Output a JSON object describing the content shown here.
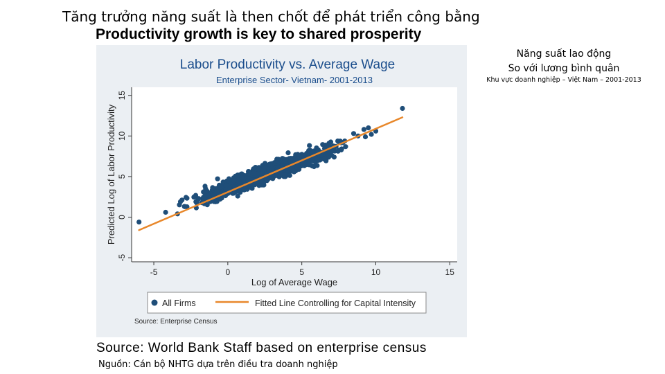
{
  "slide": {
    "title_vi": "Tăng trưởng năng suất là then chốt để phát triển công bằng",
    "title_en": "Productivity growth is key to shared prosperity",
    "side_title_line1": "Năng suất lao động",
    "side_title_line2": "So với lương bình quân",
    "side_subtitle": "Khu vực doanh nghiệp – Việt Nam – 2001-2013",
    "source_en": "Source: World Bank Staff based on enterprise census",
    "source_vi": "Nguồn: Cán bộ NHTG dựa trên điều tra doanh nghiệp"
  },
  "colors": {
    "points": "#1f4e79",
    "fit_line": "#e8872a",
    "panel_bg": "#ebeff3",
    "plot_bg": "#ffffff",
    "title": "#1a4d8c"
  },
  "chart_data": {
    "type": "scatter",
    "title": "Labor Productivity vs. Average Wage",
    "subtitle": "Enterprise Sector- Vietnam- 2001-2013",
    "xlabel": "Log of Average Wage",
    "ylabel": "Predicted Log of Labor Productivity",
    "xlim": [
      -6.5,
      15.5
    ],
    "ylim": [
      -5.5,
      16
    ],
    "xticks": [
      -5,
      0,
      5,
      10,
      15
    ],
    "yticks": [
      -5,
      0,
      5,
      10,
      15
    ],
    "grid": false,
    "legend_position": "bottom",
    "note": "Source: Enterprise Census",
    "series": [
      {
        "name": "All Firms",
        "kind": "scatter",
        "cloud": {
          "x_range": [
            -3.8,
            9.2
          ],
          "center_line": {
            "intercept": 3.65,
            "slope": 0.67
          },
          "spread": 0.95
        },
        "outliers": [
          {
            "x": -6,
            "y": -0.6
          },
          {
            "x": -4.2,
            "y": 0.6
          },
          {
            "x": -3.4,
            "y": 0.4
          },
          {
            "x": -3.2,
            "y": 1.9
          },
          {
            "x": -2.9,
            "y": 1.3
          },
          {
            "x": -1.5,
            "y": 3.5
          },
          {
            "x": 8.5,
            "y": 10.3
          },
          {
            "x": 8.8,
            "y": 10.0
          },
          {
            "x": 9.2,
            "y": 10.8
          },
          {
            "x": 9.3,
            "y": 9.9
          },
          {
            "x": 9.5,
            "y": 11.0
          },
          {
            "x": 9.7,
            "y": 10.2
          },
          {
            "x": 10.0,
            "y": 10.6
          },
          {
            "x": 11.8,
            "y": 13.4
          }
        ]
      },
      {
        "name": "Fitted Line Controlling for Capital Intensity",
        "kind": "line",
        "x": [
          -6,
          11.8
        ],
        "y": [
          -1.6,
          12.3
        ]
      }
    ]
  }
}
